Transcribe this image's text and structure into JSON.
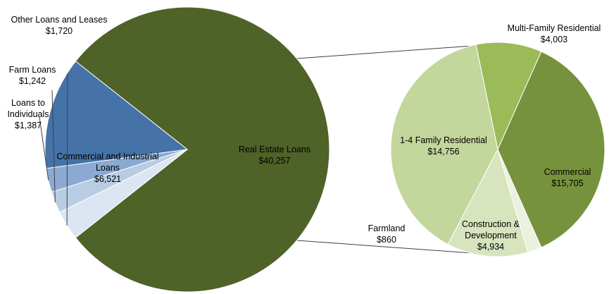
{
  "chart_data": [
    {
      "type": "pie",
      "categories": [
        "Real Estate Loans",
        "Commercial and Industrial Loans",
        "Loans to Individuals",
        "Farm Loans",
        "Other Loans and Leases"
      ],
      "values": [
        40257,
        6521,
        1387,
        1242,
        1720
      ],
      "label_lines": [
        [
          "Real Estate Loans",
          "$40,257"
        ],
        [
          "Commercial and Industrial",
          "Loans",
          "$6,521"
        ],
        [
          "Loans to",
          "Individuals",
          "$1,387"
        ],
        [
          "Farm Loans",
          "$1,242"
        ],
        [
          "Other Loans and Leases",
          "$1,720"
        ]
      ],
      "colors": [
        "#4f6228",
        "#4572a7",
        "#8ba9d2",
        "#b8cce4",
        "#dce6f2"
      ]
    },
    {
      "type": "pie",
      "title": "",
      "categories": [
        "Multi-Family Residential",
        "Commercial",
        "Construction & Development",
        "Farmland",
        "1-4 Family Residential"
      ],
      "values": [
        4003,
        15705,
        4934,
        860,
        14756
      ],
      "label_lines": [
        [
          "Multi-Family Residential",
          "$4,003"
        ],
        [
          "Commercial",
          "$15,705"
        ],
        [
          "Construction &",
          "Development",
          "$4,934"
        ],
        [
          "Farmland",
          "$860"
        ],
        [
          "1-4 Family Residential",
          "$14,756"
        ]
      ],
      "colors": [
        "#9bbb59",
        "#c3d69b",
        "#d7e4bd",
        "#ebf1de",
        "#76923c"
      ]
    }
  ]
}
